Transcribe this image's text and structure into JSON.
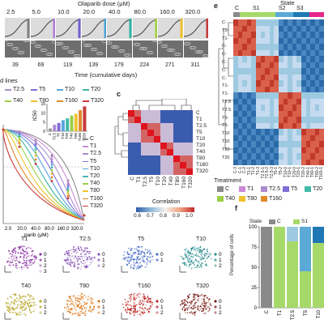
{
  "panel_a": {
    "dose_title": "Olaparib dose (μM)",
    "doses": [
      "2.5",
      "5.0",
      "10.0",
      "20.0",
      "40.0",
      "80.0",
      "160.0",
      "320.0"
    ],
    "dose_colors": [
      "#808080",
      "#b07dd6",
      "#6f5fcf",
      "#4aa3d8",
      "#33b3a3",
      "#9fd03a",
      "#f0c22e",
      "#c43a3a"
    ],
    "days": [
      "39",
      "69",
      "119",
      "139",
      "179",
      "224",
      "271",
      "311"
    ],
    "time_label": "Time (cumulative days)"
  },
  "panel_b": {
    "cell_lines_label": "d lines",
    "legend_top": [
      "T2.5",
      "T5",
      "T10",
      "T20",
      "T40",
      "T80",
      "T160",
      "T320"
    ],
    "ylabel": "IC50",
    "bar_categories": [
      "C",
      "T2.5",
      "T5",
      "T10",
      "T20",
      "T40",
      "T80",
      "T160",
      "T320"
    ],
    "bar_colors": [
      "#9a9a9a",
      "#a98bd0",
      "#7f6ed9",
      "#59a6df",
      "#44b9a8",
      "#9ccf48",
      "#f1c332",
      "#e08a2b",
      "#c8393a"
    ],
    "bar_ticks": [
      "0",
      "5",
      "10",
      "15"
    ],
    "legend_right": [
      "C",
      "T1",
      "T2.5",
      "T5",
      "T10",
      "T20",
      "T40",
      "T80",
      "T160",
      "T320"
    ],
    "legend_right_colors": [
      "#8a8a8a",
      "#c98bd7",
      "#a98bd0",
      "#7f6ed9",
      "#59a6df",
      "#44b9a8",
      "#9ccf48",
      "#f1c332",
      "#e08a2b",
      "#c8393a"
    ],
    "xticks": [
      "2.0",
      "20.0",
      "40.0",
      "80.0",
      "160.0",
      "320.0"
    ],
    "xlabel": "parib (μM)"
  },
  "panel_c": {
    "letter": "c",
    "labels": [
      "C",
      "T1",
      "T2.5",
      "T5",
      "T10",
      "T20",
      "T40",
      "T80",
      "T160",
      "T320"
    ],
    "colorbar_label": "Correlation",
    "colorbar_ticks": [
      "0.6",
      "0.7",
      "0.8",
      "0.9",
      "1.0"
    ]
  },
  "panel_e": {
    "letter": "e",
    "state_title": "State",
    "states": [
      "C",
      "S1",
      "S2",
      "S3"
    ],
    "treatment_title": "Treatment",
    "treatments": [
      "C",
      "T1",
      "T2.5",
      "T5",
      "T20",
      "T40",
      "T80",
      "T160"
    ],
    "treatment_colors": [
      "#8a8a8a",
      "#c98bd7",
      "#a98bd0",
      "#7f6ed9",
      "#44b9a8",
      "#9ccf48",
      "#f1c332",
      "#e08a2b"
    ],
    "row_labels": [
      "C-",
      "T1-",
      "T1-",
      "C-",
      "C-",
      "C-",
      "C-",
      "C-",
      "T1-",
      "T1-",
      "T2.5",
      "T2.5",
      "T5-",
      "T5-",
      "T10",
      "T10",
      "T20",
      "T20"
    ],
    "col_labels": [
      "C-3",
      "C-1",
      "C-2",
      "T1-1",
      "T1-2",
      "T1-3",
      "T2.5-1",
      "T2.5-2",
      "T2.5-3",
      "T5-1",
      "T5-2",
      "T10-0",
      "T10-1",
      "T20-0",
      "T20-1",
      "T20-2",
      "T40-1",
      "T80-1",
      "T80-2",
      "T160-1"
    ]
  },
  "panel_umap": {
    "items": [
      {
        "title": "T1",
        "clusters": [
          "0",
          "1",
          "2",
          "3"
        ],
        "color": "#8e3aa6"
      },
      {
        "title": "T2.5",
        "clusters": [
          "0",
          "1",
          "2"
        ],
        "color": "#8a56b8"
      },
      {
        "title": "T5",
        "clusters": [
          "0",
          "1"
        ],
        "color": "#4b6fc7"
      },
      {
        "title": "T10",
        "clusters": [
          "0",
          "1",
          "2"
        ],
        "color": "#2a8c8f"
      },
      {
        "title": "T40",
        "clusters": [
          "0",
          "1",
          "2"
        ],
        "color": "#b8a82a"
      },
      {
        "title": "T80",
        "clusters": [
          "0",
          "1",
          "2"
        ],
        "color": "#e07a1f"
      },
      {
        "title": "T160",
        "clusters": [
          "0",
          "1",
          "2"
        ],
        "color": "#c02a2a"
      },
      {
        "title": "T320",
        "clusters": [
          "0",
          "1",
          "2"
        ],
        "color": "#7a1f1a"
      }
    ]
  },
  "panel_f": {
    "letter": "f",
    "legend_title": "State",
    "legend_items": [
      "C",
      "S1"
    ],
    "legend_colors": [
      "#8a8a8a",
      "#a6d96a"
    ],
    "ylabel": "Percentage of cells",
    "yticks": [
      "0",
      "25",
      "50",
      "75",
      "100"
    ],
    "categories": [
      "C",
      "T1",
      "T2.5",
      "T5",
      "T10"
    ]
  },
  "chart_data": [
    {
      "type": "bar",
      "categories": [
        "C",
        "T2.5",
        "T5",
        "T10",
        "T20",
        "T40",
        "T80",
        "T160",
        "T320"
      ],
      "values": [
        1.5,
        3.5,
        4.5,
        6.0,
        7.0,
        8.5,
        9.5,
        11.5,
        13.5
      ],
      "ylabel": "IC50",
      "ylim": [
        0,
        15
      ]
    },
    {
      "type": "bar",
      "categories": [
        "C",
        "T1",
        "T2.5",
        "T5",
        "T10"
      ],
      "series": [
        {
          "name": "C",
          "values": [
            100,
            0,
            0,
            0,
            0
          ]
        },
        {
          "name": "S1",
          "values": [
            0,
            100,
            82,
            45,
            80
          ]
        }
      ],
      "ylabel": "Percentage of cells",
      "ylim": [
        0,
        100
      ]
    }
  ]
}
